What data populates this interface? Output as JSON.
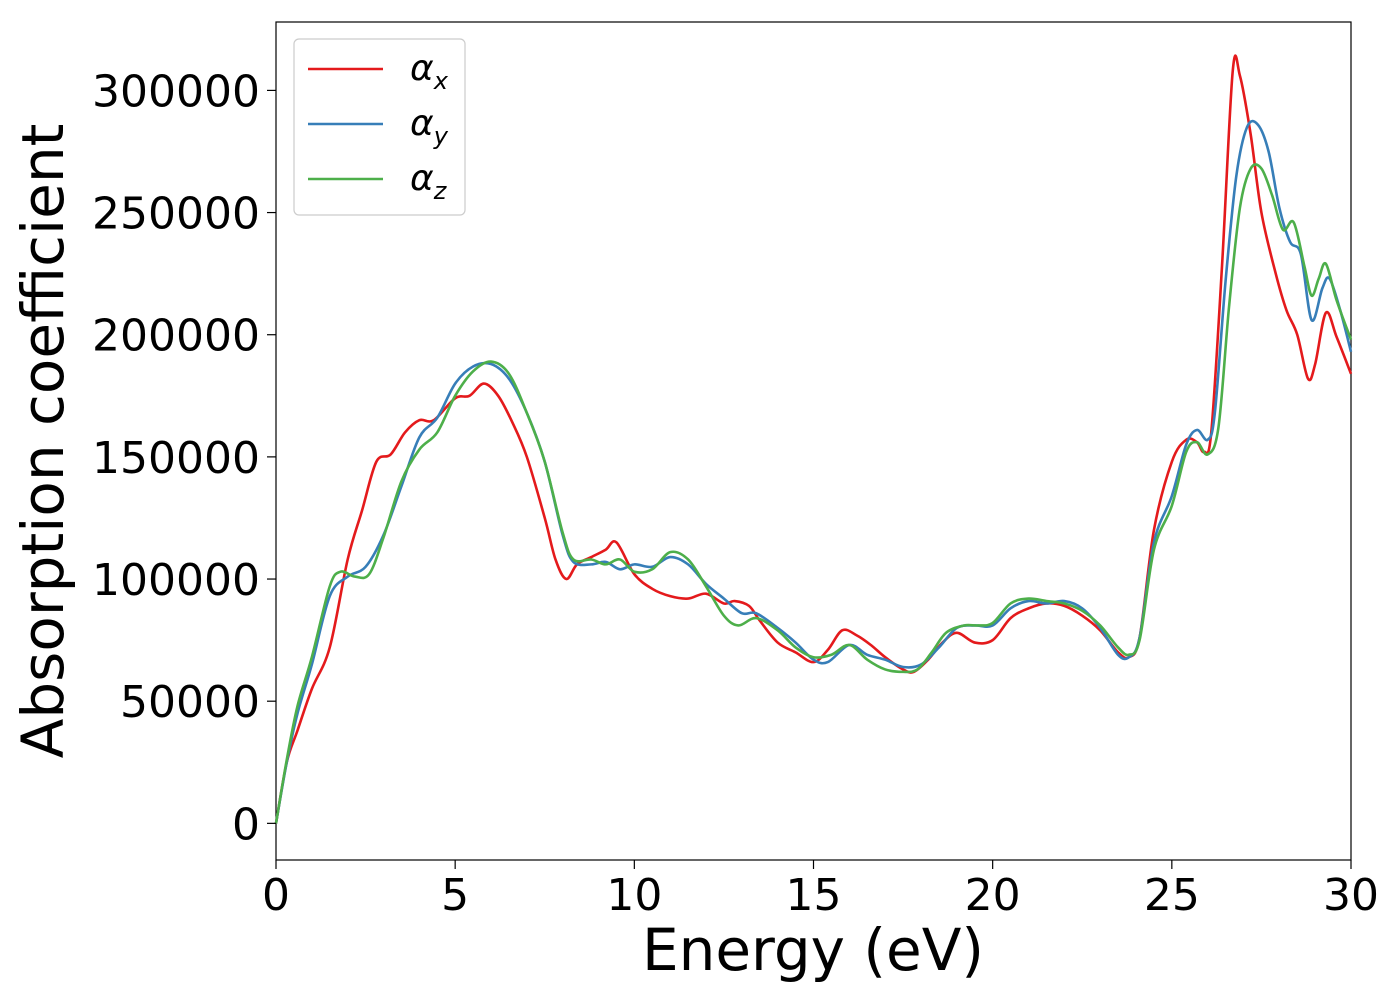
{
  "chart_data": {
    "type": "line",
    "title": "",
    "xlabel": "Energy (eV)",
    "ylabel": "Absorption coefficient",
    "xlim": [
      0,
      30
    ],
    "ylim": [
      -15000,
      328000
    ],
    "xticks": [
      0,
      5,
      10,
      15,
      20,
      25,
      30
    ],
    "yticks": [
      0,
      50000,
      100000,
      150000,
      200000,
      250000,
      300000
    ],
    "xtick_labels": [
      "0",
      "5",
      "10",
      "15",
      "20",
      "25",
      "30"
    ],
    "ytick_labels": [
      "0",
      "50000",
      "100000",
      "150000",
      "200000",
      "250000",
      "300000"
    ],
    "grid": false,
    "legend_position": "top-left",
    "series": [
      {
        "name": "α",
        "subscript": "x",
        "color": "#e41a1c",
        "points": [
          [
            0,
            0
          ],
          [
            0.3,
            25000
          ],
          [
            0.6,
            38000
          ],
          [
            1.0,
            55000
          ],
          [
            1.5,
            72000
          ],
          [
            2.0,
            108000
          ],
          [
            2.4,
            128000
          ],
          [
            2.8,
            148000
          ],
          [
            3.2,
            151000
          ],
          [
            3.6,
            160000
          ],
          [
            4.0,
            165000
          ],
          [
            4.4,
            165000
          ],
          [
            5.0,
            174000
          ],
          [
            5.4,
            175000
          ],
          [
            5.8,
            180000
          ],
          [
            6.2,
            175000
          ],
          [
            6.6,
            164000
          ],
          [
            7.0,
            150000
          ],
          [
            7.5,
            125000
          ],
          [
            7.8,
            108000
          ],
          [
            8.1,
            100000
          ],
          [
            8.4,
            106000
          ],
          [
            8.8,
            109000
          ],
          [
            9.2,
            112000
          ],
          [
            9.5,
            115000
          ],
          [
            10.0,
            102000
          ],
          [
            10.5,
            96000
          ],
          [
            11.0,
            93000
          ],
          [
            11.5,
            92000
          ],
          [
            12.0,
            94000
          ],
          [
            12.5,
            90000
          ],
          [
            12.8,
            91000
          ],
          [
            13.2,
            89000
          ],
          [
            13.5,
            83000
          ],
          [
            14.0,
            74000
          ],
          [
            14.5,
            70000
          ],
          [
            15.0,
            66000
          ],
          [
            15.4,
            71000
          ],
          [
            15.8,
            79000
          ],
          [
            16.2,
            77000
          ],
          [
            16.6,
            73000
          ],
          [
            17.0,
            68000
          ],
          [
            17.5,
            63000
          ],
          [
            17.8,
            62000
          ],
          [
            18.2,
            67000
          ],
          [
            18.6,
            74000
          ],
          [
            19.0,
            78000
          ],
          [
            19.5,
            74000
          ],
          [
            20.0,
            75000
          ],
          [
            20.5,
            84000
          ],
          [
            21.0,
            88000
          ],
          [
            21.5,
            90000
          ],
          [
            22.0,
            89000
          ],
          [
            22.5,
            85000
          ],
          [
            23.0,
            79000
          ],
          [
            23.5,
            70000
          ],
          [
            23.8,
            68000
          ],
          [
            24.1,
            76000
          ],
          [
            24.5,
            120000
          ],
          [
            25.0,
            148000
          ],
          [
            25.4,
            157000
          ],
          [
            25.7,
            156000
          ],
          [
            25.9,
            152000
          ],
          [
            26.1,
            160000
          ],
          [
            26.4,
            228000
          ],
          [
            26.7,
            308000
          ],
          [
            26.9,
            306000
          ],
          [
            27.2,
            282000
          ],
          [
            27.5,
            250000
          ],
          [
            27.9,
            225000
          ],
          [
            28.2,
            210000
          ],
          [
            28.5,
            200000
          ],
          [
            28.8,
            182000
          ],
          [
            29.0,
            188000
          ],
          [
            29.3,
            209000
          ],
          [
            29.6,
            199000
          ],
          [
            30.0,
            184000
          ]
        ]
      },
      {
        "name": "α",
        "subscript": "y",
        "color": "#377eb8",
        "points": [
          [
            0,
            0
          ],
          [
            0.3,
            25000
          ],
          [
            0.6,
            45000
          ],
          [
            1.0,
            65000
          ],
          [
            1.5,
            93000
          ],
          [
            2.0,
            101000
          ],
          [
            2.5,
            105000
          ],
          [
            3.0,
            118000
          ],
          [
            3.5,
            138000
          ],
          [
            4.0,
            158000
          ],
          [
            4.5,
            166000
          ],
          [
            5.0,
            180000
          ],
          [
            5.5,
            187000
          ],
          [
            6.0,
            188000
          ],
          [
            6.5,
            182000
          ],
          [
            7.0,
            168000
          ],
          [
            7.5,
            148000
          ],
          [
            8.0,
            118000
          ],
          [
            8.3,
            107000
          ],
          [
            8.8,
            106000
          ],
          [
            9.2,
            107000
          ],
          [
            9.6,
            104000
          ],
          [
            10.0,
            106000
          ],
          [
            10.5,
            105000
          ],
          [
            11.0,
            109000
          ],
          [
            11.5,
            106000
          ],
          [
            12.0,
            98000
          ],
          [
            12.5,
            92000
          ],
          [
            13.0,
            86000
          ],
          [
            13.4,
            86000
          ],
          [
            14.0,
            80000
          ],
          [
            14.5,
            74000
          ],
          [
            15.0,
            67000
          ],
          [
            15.4,
            66000
          ],
          [
            16.0,
            73000
          ],
          [
            16.5,
            69000
          ],
          [
            17.0,
            67000
          ],
          [
            17.5,
            64000
          ],
          [
            18.0,
            65000
          ],
          [
            18.5,
            72000
          ],
          [
            19.0,
            80000
          ],
          [
            19.5,
            81000
          ],
          [
            20.0,
            81000
          ],
          [
            20.5,
            88000
          ],
          [
            21.0,
            91000
          ],
          [
            21.5,
            90000
          ],
          [
            22.0,
            91000
          ],
          [
            22.5,
            88000
          ],
          [
            23.0,
            80000
          ],
          [
            23.5,
            69000
          ],
          [
            23.8,
            68000
          ],
          [
            24.1,
            76000
          ],
          [
            24.5,
            115000
          ],
          [
            25.0,
            134000
          ],
          [
            25.4,
            155000
          ],
          [
            25.7,
            161000
          ],
          [
            26.0,
            157000
          ],
          [
            26.2,
            168000
          ],
          [
            26.5,
            222000
          ],
          [
            26.8,
            265000
          ],
          [
            27.1,
            285000
          ],
          [
            27.4,
            286000
          ],
          [
            27.7,
            275000
          ],
          [
            28.0,
            252000
          ],
          [
            28.3,
            238000
          ],
          [
            28.6,
            233000
          ],
          [
            28.9,
            206000
          ],
          [
            29.2,
            219000
          ],
          [
            29.4,
            223000
          ],
          [
            29.7,
            210000
          ],
          [
            30.0,
            193000
          ]
        ]
      },
      {
        "name": "α",
        "subscript": "z",
        "color": "#4daf4a",
        "points": [
          [
            0,
            0
          ],
          [
            0.3,
            26000
          ],
          [
            0.6,
            48000
          ],
          [
            1.0,
            68000
          ],
          [
            1.5,
            97000
          ],
          [
            1.8,
            103000
          ],
          [
            2.2,
            101000
          ],
          [
            2.6,
            102000
          ],
          [
            3.0,
            117000
          ],
          [
            3.5,
            140000
          ],
          [
            4.0,
            153000
          ],
          [
            4.5,
            160000
          ],
          [
            5.0,
            175000
          ],
          [
            5.5,
            185000
          ],
          [
            6.0,
            189000
          ],
          [
            6.5,
            184000
          ],
          [
            7.0,
            168000
          ],
          [
            7.5,
            148000
          ],
          [
            8.0,
            119000
          ],
          [
            8.3,
            108000
          ],
          [
            8.8,
            108000
          ],
          [
            9.2,
            106000
          ],
          [
            9.6,
            108000
          ],
          [
            10.0,
            103000
          ],
          [
            10.5,
            104000
          ],
          [
            11.0,
            111000
          ],
          [
            11.5,
            108000
          ],
          [
            12.0,
            97000
          ],
          [
            12.5,
            85000
          ],
          [
            12.9,
            81000
          ],
          [
            13.4,
            84000
          ],
          [
            14.0,
            79000
          ],
          [
            14.5,
            72000
          ],
          [
            15.0,
            68000
          ],
          [
            15.5,
            69000
          ],
          [
            16.0,
            73000
          ],
          [
            16.5,
            67000
          ],
          [
            17.0,
            63000
          ],
          [
            17.5,
            62000
          ],
          [
            17.9,
            63000
          ],
          [
            18.3,
            70000
          ],
          [
            18.7,
            78000
          ],
          [
            19.2,
            81000
          ],
          [
            19.6,
            81000
          ],
          [
            20.0,
            82000
          ],
          [
            20.5,
            90000
          ],
          [
            21.0,
            92000
          ],
          [
            21.5,
            91000
          ],
          [
            22.0,
            90000
          ],
          [
            22.5,
            87000
          ],
          [
            23.0,
            81000
          ],
          [
            23.5,
            72000
          ],
          [
            23.8,
            69000
          ],
          [
            24.1,
            75000
          ],
          [
            24.5,
            112000
          ],
          [
            25.0,
            130000
          ],
          [
            25.4,
            152000
          ],
          [
            25.7,
            156000
          ],
          [
            26.0,
            151000
          ],
          [
            26.3,
            162000
          ],
          [
            26.6,
            212000
          ],
          [
            26.9,
            252000
          ],
          [
            27.2,
            268000
          ],
          [
            27.5,
            268000
          ],
          [
            27.8,
            257000
          ],
          [
            28.1,
            243000
          ],
          [
            28.4,
            246000
          ],
          [
            28.7,
            228000
          ],
          [
            28.9,
            216000
          ],
          [
            29.1,
            223000
          ],
          [
            29.3,
            229000
          ],
          [
            29.6,
            214000
          ],
          [
            30.0,
            198000
          ]
        ]
      }
    ]
  }
}
